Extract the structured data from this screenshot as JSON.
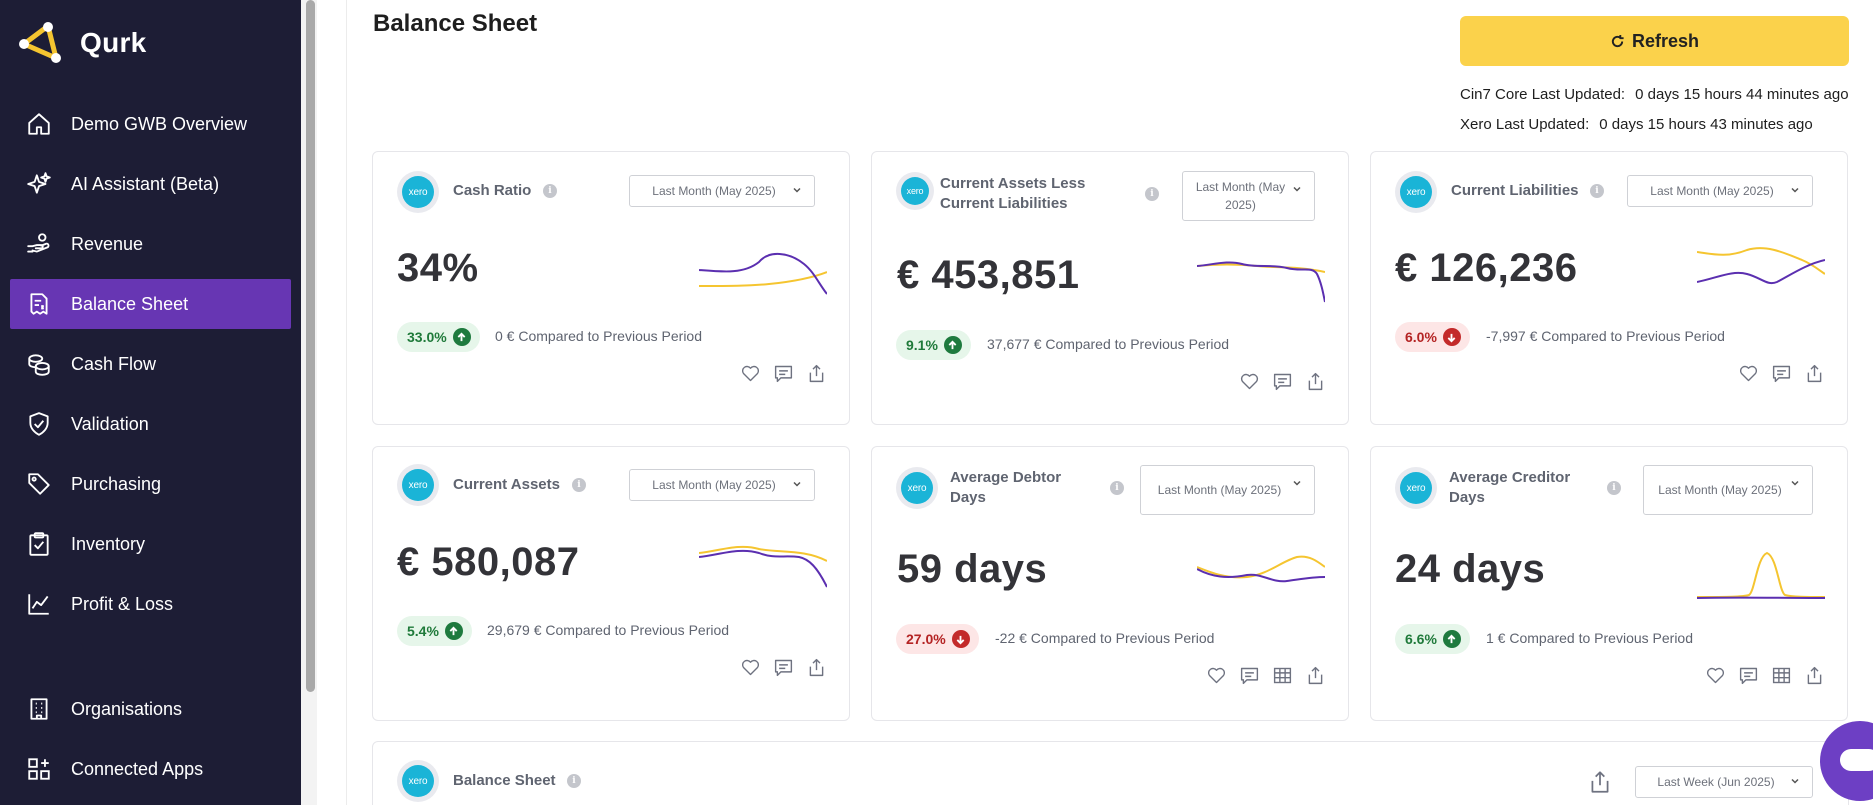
{
  "app": {
    "name": "Qurk"
  },
  "sidebar": {
    "items": [
      {
        "label": "Demo GWB Overview",
        "icon": "home-icon",
        "active": false
      },
      {
        "label": "AI Assistant (Beta)",
        "icon": "sparkle-icon",
        "active": false
      },
      {
        "label": "Revenue",
        "icon": "hand-coins-icon",
        "active": false
      },
      {
        "label": "Balance Sheet",
        "icon": "receipt-icon",
        "active": true
      },
      {
        "label": "Cash Flow",
        "icon": "coins-icon",
        "active": false
      },
      {
        "label": "Validation",
        "icon": "shield-check-icon",
        "active": false
      },
      {
        "label": "Purchasing",
        "icon": "tag-icon",
        "active": false
      },
      {
        "label": "Inventory",
        "icon": "clipboard-check-icon",
        "active": false
      },
      {
        "label": "Profit & Loss",
        "icon": "line-chart-icon",
        "active": false
      }
    ],
    "bottom_items": [
      {
        "label": "Organisations",
        "icon": "building-icon"
      },
      {
        "label": "Connected Apps",
        "icon": "apps-grid-icon"
      }
    ]
  },
  "header": {
    "title": "Balance Sheet",
    "refresh_label": "Refresh",
    "cin7_label": "Cin7 Core Last Updated:",
    "cin7_value": "0 days 15 hours 44 minutes ago",
    "xero_label": "Xero Last Updated:",
    "xero_value": "0 days 15 hours 43 minutes ago"
  },
  "cards": [
    {
      "source": "xero",
      "title": "Cash Ratio",
      "period": "Last Month (May 2025)",
      "value": "34%",
      "change": "33.0%",
      "direction": "up",
      "compare": "0 € Compared to Previous Period"
    },
    {
      "source": "xero",
      "title": "Current Assets Less Current Liabilities",
      "period": "Last Month (May 2025)",
      "value": "€ 453,851",
      "change": "9.1%",
      "direction": "up",
      "compare": "37,677 € Compared to Previous Period"
    },
    {
      "source": "xero",
      "title": "Current Liabilities",
      "period": "Last Month (May 2025)",
      "value": "€ 126,236",
      "change": "6.0%",
      "direction": "down",
      "compare": "-7,997 € Compared to Previous Period"
    },
    {
      "source": "xero",
      "title": "Current Assets",
      "period": "Last Month (May 2025)",
      "value": "€ 580,087",
      "change": "5.4%",
      "direction": "up",
      "compare": "29,679 € Compared to Previous Period"
    },
    {
      "source": "xero",
      "title": "Average Debtor Days",
      "period": "Last Month (May 2025)",
      "value": "59 days",
      "change": "27.0%",
      "direction": "down",
      "compare": "-22 € Compared to Previous Period"
    },
    {
      "source": "xero",
      "title": "Average Creditor Days",
      "period": "Last Month (May 2025)",
      "value": "24 days",
      "change": "6.6%",
      "direction": "up",
      "compare": "1 € Compared to Previous Period"
    }
  ],
  "balance_section": {
    "source": "xero",
    "title": "Balance Sheet",
    "period": "Last Week (Jun 2025)"
  },
  "colors": {
    "sidebar_bg": "#1d1d35",
    "active_nav": "#6736b3",
    "accent_yellow": "#fbd24b",
    "series_purple": "#5b2fb0",
    "series_yellow": "#f5c530",
    "xero_blue": "#1ab4d7"
  }
}
